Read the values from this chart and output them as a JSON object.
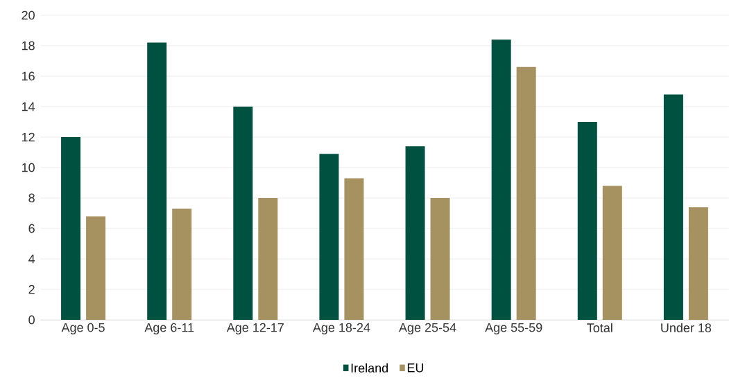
{
  "chart_data": {
    "type": "bar",
    "categories": [
      "Age 0-5",
      "Age 6-11",
      "Age 12-17",
      "Age 18-24",
      "Age 25-54",
      "Age 55-59",
      "Total",
      "Under 18"
    ],
    "series": [
      {
        "name": "Ireland",
        "color": "#00513f",
        "values": [
          12.0,
          18.2,
          14.0,
          10.9,
          11.4,
          18.4,
          13.0,
          14.8
        ]
      },
      {
        "name": "EU",
        "color": "#a69160",
        "values": [
          6.8,
          7.3,
          8.0,
          9.3,
          8.0,
          16.6,
          8.8,
          7.4
        ]
      }
    ],
    "ylim": [
      0,
      20
    ],
    "yticks": [
      0,
      2,
      4,
      6,
      8,
      10,
      12,
      14,
      16,
      18,
      20
    ],
    "grid": "y",
    "legend": "bottom"
  }
}
